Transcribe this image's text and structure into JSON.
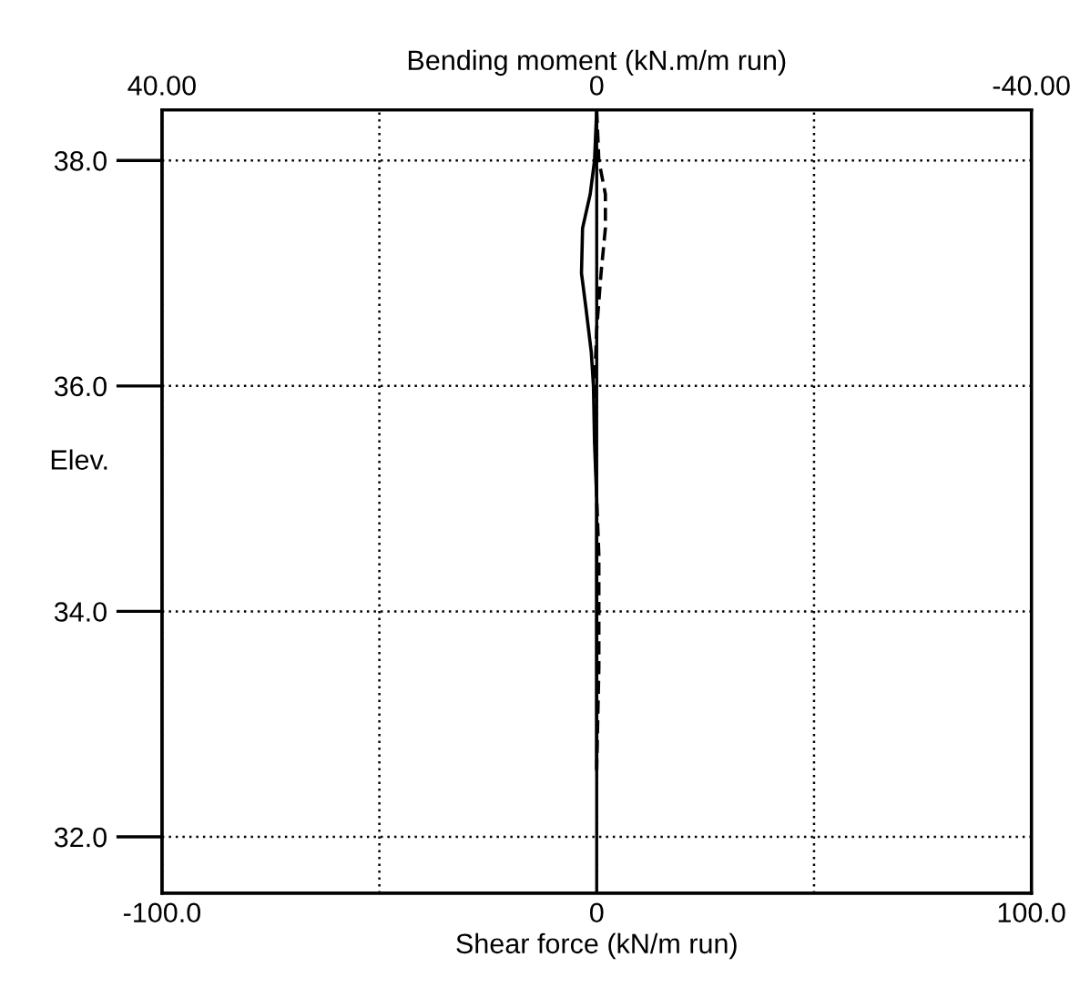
{
  "chart_data": {
    "type": "line",
    "xlabel": "Shear force (kN/m run)",
    "x2label": "Bending moment (kN.m/m run)",
    "ylabel": "Elev.",
    "orientation": "horizontal",
    "xlim": [
      -100,
      100
    ],
    "xticks": [
      {
        "value": -100,
        "label": "-100.0"
      },
      {
        "value": -50,
        "label": null
      },
      0,
      {
        "value": 50,
        "label": null
      },
      {
        "value": 100,
        "label": "100.0"
      }
    ],
    "x2lim": [
      40,
      -40
    ],
    "x2ticks": [
      {
        "value": 40,
        "label": "40.00"
      },
      0,
      {
        "value": -40,
        "label": "-40.00"
      }
    ],
    "ylim": [
      31.5,
      38.45
    ],
    "yticks": [
      {
        "value": 32,
        "label": "32.0"
      },
      {
        "value": 34,
        "label": "34.0"
      },
      {
        "value": 36,
        "label": "36.0"
      },
      {
        "value": 38,
        "label": "38.0"
      }
    ],
    "grid": true,
    "series": [
      {
        "color": "#000000",
        "axis": "x2",
        "line_style": "solid",
        "x": [
          38.45,
          38.0,
          37.7,
          37.4,
          37.0,
          36.7,
          36.3,
          36.0,
          35.5,
          35.0,
          32.6
        ],
        "values": [
          0,
          0.2,
          0.6,
          1.3,
          1.4,
          1.0,
          0.5,
          0.3,
          0.2,
          0,
          0
        ]
      },
      {
        "color": "#000000",
        "line_style": "dashed",
        "x": [
          38.45,
          38.0,
          37.7,
          37.4,
          37.0,
          36.5,
          36.0,
          35.0,
          34.5,
          33.5,
          32.6
        ],
        "values": [
          0,
          0.5,
          2,
          2,
          1,
          0,
          -0.5,
          0,
          0.5,
          0.5,
          0
        ]
      }
    ]
  }
}
